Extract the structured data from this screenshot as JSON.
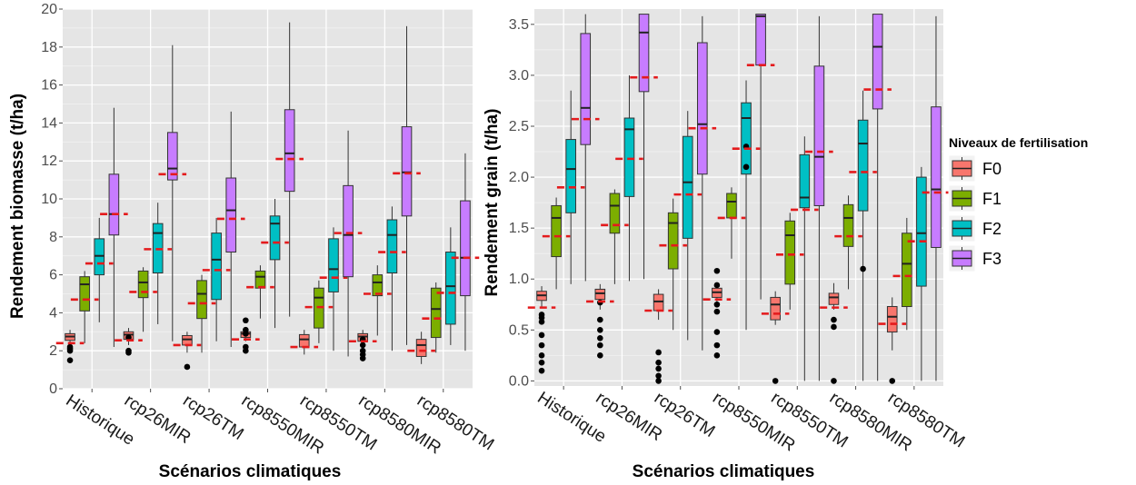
{
  "legend": {
    "title": "Niveaux de fertilisation",
    "entries": [
      {
        "label": "F0",
        "color": "#F8766D"
      },
      {
        "label": "F1",
        "color": "#7CAE00"
      },
      {
        "label": "F2",
        "color": "#00BFC4"
      },
      {
        "label": "F3",
        "color": "#C77CFF"
      }
    ]
  },
  "colors": {
    "panel_bg": "#E5E5E5",
    "grid": "#FFFFFF",
    "mean_line": "#E41A1C",
    "point": "#000000"
  },
  "chart_data": [
    {
      "type": "boxplot",
      "xlabel": "Scénarios climatiques",
      "ylabel": "Rendement biomasse (t/ha)",
      "ylim": [
        0,
        20
      ],
      "yticks": [
        0,
        2,
        4,
        6,
        8,
        10,
        12,
        14,
        16,
        18,
        20
      ],
      "categories": [
        "Historique",
        "rcp26MIR",
        "rcp26TM",
        "rcp8550MIR",
        "rcp8550TM",
        "rcp8580MIR",
        "rcp8580TM"
      ],
      "series": [
        {
          "name": "F0",
          "boxes": [
            {
              "min": 2.3,
              "q1": 2.55,
              "median": 2.75,
              "q3": 2.9,
              "max": 3.1,
              "mean": 2.4,
              "outliers": [
                1.5,
                2.0,
                2.1,
                2.2
              ]
            },
            {
              "min": 2.3,
              "q1": 2.6,
              "median": 2.85,
              "q3": 3.0,
              "max": 3.2,
              "mean": 2.55,
              "outliers": [
                1.9,
                2.0,
                2.7
              ]
            },
            {
              "min": 1.9,
              "q1": 2.3,
              "median": 2.6,
              "q3": 2.8,
              "max": 3.0,
              "mean": 2.3,
              "outliers": [
                1.15
              ]
            },
            {
              "min": 2.5,
              "q1": 2.7,
              "median": 2.9,
              "q3": 3.0,
              "max": 3.2,
              "mean": 2.6,
              "outliers": [
                2.0,
                2.2,
                2.9,
                3.1,
                3.6
              ]
            },
            {
              "min": 1.8,
              "q1": 2.2,
              "median": 2.6,
              "q3": 2.85,
              "max": 3.1,
              "mean": 2.2,
              "outliers": []
            },
            {
              "min": 2.3,
              "q1": 2.5,
              "median": 2.75,
              "q3": 2.9,
              "max": 3.1,
              "mean": 2.5,
              "outliers": [
                1.6,
                1.8,
                2.0,
                2.3,
                2.6
              ]
            },
            {
              "min": 1.3,
              "q1": 1.7,
              "median": 2.3,
              "q3": 2.6,
              "max": 3.0,
              "mean": 2.0,
              "outliers": []
            }
          ]
        },
        {
          "name": "F1",
          "boxes": [
            {
              "min": 2.4,
              "q1": 4.1,
              "median": 5.5,
              "q3": 5.9,
              "max": 6.2,
              "mean": 4.7,
              "outliers": []
            },
            {
              "min": 3.0,
              "q1": 4.8,
              "median": 5.6,
              "q3": 6.2,
              "max": 6.4,
              "mean": 5.1,
              "outliers": []
            },
            {
              "min": 1.9,
              "q1": 3.7,
              "median": 5.0,
              "q3": 5.7,
              "max": 6.0,
              "mean": 4.5,
              "outliers": []
            },
            {
              "min": 3.7,
              "q1": 5.3,
              "median": 5.9,
              "q3": 6.2,
              "max": 6.5,
              "mean": 5.35,
              "outliers": []
            },
            {
              "min": 2.4,
              "q1": 3.2,
              "median": 4.8,
              "q3": 5.3,
              "max": 5.7,
              "mean": 4.3,
              "outliers": []
            },
            {
              "min": 2.8,
              "q1": 4.9,
              "median": 5.6,
              "q3": 6.0,
              "max": 6.5,
              "mean": 5.0,
              "outliers": []
            },
            {
              "min": 1.9,
              "q1": 2.7,
              "median": 4.2,
              "q3": 5.3,
              "max": 5.6,
              "mean": 3.7,
              "outliers": []
            }
          ]
        },
        {
          "name": "F2",
          "boxes": [
            {
              "min": 3.5,
              "q1": 6.0,
              "median": 7.0,
              "q3": 7.9,
              "max": 9.0,
              "mean": 6.6,
              "outliers": []
            },
            {
              "min": 3.4,
              "q1": 6.1,
              "median": 8.2,
              "q3": 8.7,
              "max": 9.8,
              "mean": 7.35,
              "outliers": []
            },
            {
              "min": 2.5,
              "q1": 4.7,
              "median": 6.8,
              "q3": 8.2,
              "max": 9.0,
              "mean": 6.25,
              "outliers": []
            },
            {
              "min": 3.2,
              "q1": 6.8,
              "median": 8.7,
              "q3": 9.1,
              "max": 10.0,
              "mean": 7.7,
              "outliers": []
            },
            {
              "min": 2.0,
              "q1": 5.1,
              "median": 6.3,
              "q3": 7.9,
              "max": 8.5,
              "mean": 5.85,
              "outliers": []
            },
            {
              "min": 2.0,
              "q1": 6.1,
              "median": 8.1,
              "q3": 8.9,
              "max": 9.6,
              "mean": 7.2,
              "outliers": []
            },
            {
              "min": 2.3,
              "q1": 3.4,
              "median": 5.4,
              "q3": 7.2,
              "max": 8.5,
              "mean": 5.05,
              "outliers": []
            }
          ]
        },
        {
          "name": "F3",
          "boxes": [
            {
              "min": 2.2,
              "q1": 8.1,
              "median": 9.2,
              "q3": 11.3,
              "max": 14.8,
              "mean": 9.2,
              "outliers": []
            },
            {
              "min": 2.5,
              "q1": 11.0,
              "median": 11.6,
              "q3": 13.5,
              "max": 18.1,
              "mean": 11.3,
              "outliers": []
            },
            {
              "min": 2.2,
              "q1": 7.2,
              "median": 9.4,
              "q3": 11.1,
              "max": 14.6,
              "mean": 8.95,
              "outliers": []
            },
            {
              "min": 3.8,
              "q1": 10.4,
              "median": 12.4,
              "q3": 14.7,
              "max": 19.3,
              "mean": 12.1,
              "outliers": []
            },
            {
              "min": 1.7,
              "q1": 5.9,
              "median": 8.1,
              "q3": 10.7,
              "max": 13.6,
              "mean": 8.2,
              "outliers": []
            },
            {
              "min": 2.3,
              "q1": 9.1,
              "median": 11.4,
              "q3": 13.8,
              "max": 19.1,
              "mean": 11.35,
              "outliers": []
            },
            {
              "min": 2.0,
              "q1": 4.9,
              "median": 6.9,
              "q3": 9.9,
              "max": 12.4,
              "mean": 6.9,
              "outliers": []
            }
          ]
        }
      ]
    },
    {
      "type": "boxplot",
      "xlabel": "Scénarios climatiques",
      "ylabel": "Rendement grain (t/ha)",
      "ylim": [
        -0.05,
        3.65
      ],
      "yticks": [
        0.0,
        0.5,
        1.0,
        1.5,
        2.0,
        2.5,
        3.0,
        3.5
      ],
      "ytick_labels": [
        "0.0",
        "0.5",
        "1.0",
        "1.5",
        "2.0",
        "2.5",
        "3.0",
        "3.5"
      ],
      "categories": [
        "Historique",
        "rcp26MIR",
        "rcp26TM",
        "rcp8550MIR",
        "rcp8550TM",
        "rcp8580MIR",
        "rcp8580TM"
      ],
      "series": [
        {
          "name": "F0",
          "boxes": [
            {
              "min": 0.72,
              "q1": 0.79,
              "median": 0.84,
              "q3": 0.88,
              "max": 0.93,
              "mean": 0.72,
              "outliers": [
                0.1,
                0.18,
                0.25,
                0.35,
                0.45,
                0.58,
                0.62,
                0.65
              ]
            },
            {
              "min": 0.7,
              "q1": 0.8,
              "median": 0.86,
              "q3": 0.9,
              "max": 0.95,
              "mean": 0.78,
              "outliers": [
                0.25,
                0.35,
                0.42,
                0.5,
                0.6,
                0.77
              ]
            },
            {
              "min": 0.6,
              "q1": 0.69,
              "median": 0.78,
              "q3": 0.85,
              "max": 0.9,
              "mean": 0.69,
              "outliers": [
                0.0,
                0.05,
                0.12,
                0.18,
                0.28
              ]
            },
            {
              "min": 0.76,
              "q1": 0.82,
              "median": 0.87,
              "q3": 0.91,
              "max": 0.96,
              "mean": 0.8,
              "outliers": [
                0.25,
                0.35,
                0.48,
                0.68,
                0.75,
                0.94,
                1.08
              ]
            },
            {
              "min": 0.55,
              "q1": 0.6,
              "median": 0.75,
              "q3": 0.82,
              "max": 0.88,
              "mean": 0.66,
              "outliers": [
                0.0
              ]
            },
            {
              "min": 0.7,
              "q1": 0.75,
              "median": 0.82,
              "q3": 0.86,
              "max": 0.96,
              "mean": 0.72,
              "outliers": [
                0.0,
                0.53,
                0.6
              ]
            },
            {
              "min": 0.3,
              "q1": 0.48,
              "median": 0.63,
              "q3": 0.73,
              "max": 0.82,
              "mean": 0.56,
              "outliers": [
                0.0
              ]
            }
          ]
        },
        {
          "name": "F1",
          "boxes": [
            {
              "min": 0.9,
              "q1": 1.22,
              "median": 1.6,
              "q3": 1.72,
              "max": 1.8,
              "mean": 1.42,
              "outliers": []
            },
            {
              "min": 0.95,
              "q1": 1.45,
              "median": 1.72,
              "q3": 1.84,
              "max": 1.88,
              "mean": 1.53,
              "outliers": []
            },
            {
              "min": 0.5,
              "q1": 1.1,
              "median": 1.55,
              "q3": 1.65,
              "max": 1.79,
              "mean": 1.33,
              "outliers": []
            },
            {
              "min": 1.2,
              "q1": 1.6,
              "median": 1.76,
              "q3": 1.84,
              "max": 1.9,
              "mean": 1.6,
              "outliers": []
            },
            {
              "min": 0.7,
              "q1": 0.95,
              "median": 1.43,
              "q3": 1.57,
              "max": 1.65,
              "mean": 1.24,
              "outliers": []
            },
            {
              "min": 0.9,
              "q1": 1.32,
              "median": 1.6,
              "q3": 1.73,
              "max": 1.82,
              "mean": 1.42,
              "outliers": []
            },
            {
              "min": 0.5,
              "q1": 0.73,
              "median": 1.15,
              "q3": 1.45,
              "max": 1.6,
              "mean": 1.03,
              "outliers": []
            }
          ]
        },
        {
          "name": "F2",
          "boxes": [
            {
              "min": 0.95,
              "q1": 1.65,
              "median": 2.08,
              "q3": 2.37,
              "max": 2.85,
              "mean": 1.9,
              "outliers": []
            },
            {
              "min": 0.98,
              "q1": 1.81,
              "median": 2.47,
              "q3": 2.58,
              "max": 3.0,
              "mean": 2.18,
              "outliers": []
            },
            {
              "min": 0.4,
              "q1": 1.4,
              "median": 1.95,
              "q3": 2.4,
              "max": 2.65,
              "mean": 1.83,
              "outliers": []
            },
            {
              "min": 0.5,
              "q1": 2.03,
              "median": 2.58,
              "q3": 2.73,
              "max": 2.95,
              "mean": 2.28,
              "outliers": [
                2.1,
                2.3
              ]
            },
            {
              "min": 0.0,
              "q1": 1.7,
              "median": 1.8,
              "q3": 2.22,
              "max": 2.4,
              "mean": 1.68,
              "outliers": []
            },
            {
              "min": 0.0,
              "q1": 1.67,
              "median": 2.33,
              "q3": 2.56,
              "max": 2.85,
              "mean": 2.05,
              "outliers": [
                1.1
              ]
            },
            {
              "min": 0.0,
              "q1": 0.93,
              "median": 1.45,
              "q3": 2.0,
              "max": 2.1,
              "mean": 1.37,
              "outliers": []
            }
          ]
        },
        {
          "name": "F3",
          "boxes": [
            {
              "min": 0.98,
              "q1": 2.32,
              "median": 2.68,
              "q3": 3.41,
              "max": 3.6,
              "mean": 2.57,
              "outliers": []
            },
            {
              "min": 1.0,
              "q1": 2.84,
              "median": 3.42,
              "q3": 3.6,
              "max": 3.6,
              "mean": 2.98,
              "outliers": []
            },
            {
              "min": 0.3,
              "q1": 2.03,
              "median": 2.52,
              "q3": 3.32,
              "max": 3.58,
              "mean": 2.48,
              "outliers": []
            },
            {
              "min": 0.8,
              "q1": 3.1,
              "median": 3.58,
              "q3": 3.6,
              "max": 3.6,
              "mean": 3.1,
              "outliers": []
            },
            {
              "min": 0.0,
              "q1": 1.72,
              "median": 2.2,
              "q3": 3.09,
              "max": 3.58,
              "mean": 2.25,
              "outliers": []
            },
            {
              "min": 0.0,
              "q1": 2.67,
              "median": 3.28,
              "q3": 3.6,
              "max": 3.6,
              "mean": 2.86,
              "outliers": []
            },
            {
              "min": 0.0,
              "q1": 1.31,
              "median": 1.88,
              "q3": 2.69,
              "max": 3.58,
              "mean": 1.85,
              "outliers": []
            }
          ]
        }
      ]
    }
  ]
}
